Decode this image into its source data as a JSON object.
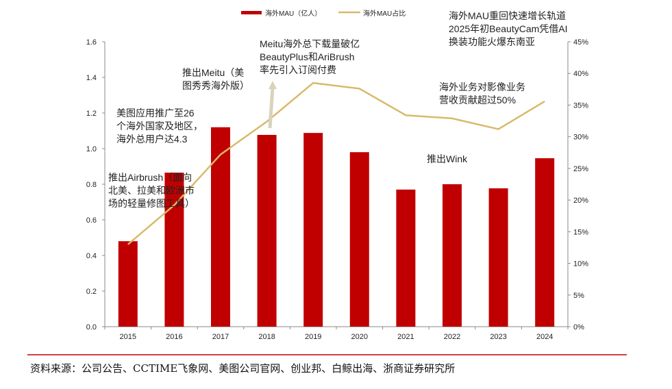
{
  "chart_data": {
    "type": "bar+line",
    "categories": [
      "2015",
      "2016",
      "2017",
      "2018",
      "2019",
      "2020",
      "2021",
      "2022",
      "2023",
      "2024"
    ],
    "series": [
      {
        "name": "海外MAU（亿人）",
        "type": "bar",
        "axis": "left",
        "color": "#C00000",
        "values": [
          0.48,
          0.865,
          1.12,
          1.077,
          1.088,
          0.98,
          0.77,
          0.8,
          0.777,
          0.946
        ]
      },
      {
        "name": "海外MAU占比",
        "type": "line",
        "axis": "right",
        "color": "#D9B96A",
        "values": [
          13.0,
          19.2,
          27.2,
          32.4,
          38.5,
          37.6,
          33.4,
          32.9,
          31.2,
          35.6
        ]
      }
    ],
    "left_axis": {
      "ylim": [
        0,
        1.6
      ],
      "ticks": [
        "0.0",
        "0.2",
        "0.4",
        "0.6",
        "0.8",
        "1.0",
        "1.2",
        "1.4",
        "1.6"
      ]
    },
    "right_axis": {
      "ylim": [
        0,
        45
      ],
      "ticks": [
        "0%",
        "5%",
        "10%",
        "15%",
        "20%",
        "25%",
        "30%",
        "35%",
        "40%",
        "45%"
      ]
    },
    "legend_position": "top",
    "grid": false,
    "annotations": [
      {
        "id": "a2015",
        "lines": [
          "推出Airbrush（面向",
          "北美、拉美和欧洲市",
          "场的轻量修图工具）"
        ]
      },
      {
        "id": "a2016",
        "lines": [
          "美图应用推广至26",
          "个海外国家及地区，",
          "海外总用户达4.3"
        ]
      },
      {
        "id": "a2017",
        "lines": [
          "推出Meitu（美",
          "图秀秀海外版）"
        ]
      },
      {
        "id": "a2018",
        "lines": [
          "Meitu海外总下载量破亿",
          "BeautyPlus和AriBrush",
          "率先引入订阅付费"
        ]
      },
      {
        "id": "a2021",
        "lines": [
          "推出Wink"
        ]
      },
      {
        "id": "a2023",
        "lines": [
          "海外业务对影像业务",
          "营收贡献超过50%"
        ]
      },
      {
        "id": "a2024",
        "lines": [
          "海外MAU重回快速增长轨道",
          "2025年初BeautyCam凭借AI",
          "换装功能火爆东南亚"
        ]
      }
    ]
  },
  "source": "资料来源：公司公告、CCTIME飞象网、美图公司官网、创业邦、白鲸出海、浙商证券研究所"
}
